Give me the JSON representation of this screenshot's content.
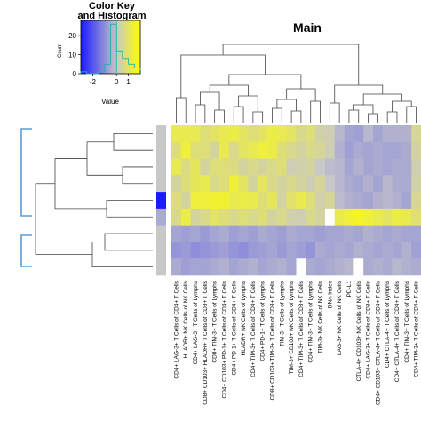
{
  "chart_data": [
    {
      "type": "heatmap",
      "title": "Main",
      "rows": 9,
      "columns": [
        "CD4+ LAG-3+ T Cells of CD4+ T Cells",
        "HLADR+ NK Cells of NK Cells",
        "CD4+ LAG-3+ T Cells of Lymphs",
        "CD8+ CD103+ HLADR+ T Cells of CD8+ T Cells",
        "CD8+ TIM-3+ T Cells of Lymphs",
        "CD4+ CD103+ PD-1+ T Cells of CD4+ T Cells",
        "CD4+ PD-1+ T Cells of CD4+ T Cells",
        "HLADR+ NK Cells of Lymphs",
        "CD4+ TIM-3+ T Cells of CD4+ T Cells",
        "CD4+ PD-1+ T Cells of Lymphs",
        "CD8+ CD103+ TIM-3+ T Cells of CD8+ T Cells",
        "TIM-3+ T Cells of Lymphs",
        "TIM-3+ CD103+ NK Cells of Lymphs",
        "CD4+ TIM-3+ T Cells of CD8+ T Cells",
        "CD4+ TIM-3+ T Cells of Lymphs",
        "TIM-3+ NK Cells of NK Cells",
        "DNA Index",
        "LAG-3+ NK Cells of NK Cells",
        "PD-L1",
        "CTLA-4+ CD103+ NK Cells of NK Cells",
        "CD4+ LAG-3+ T Cells of CD8+ T Cells",
        "CD4+ CD103+ CTLA-4+ T Cells of CD4+ T Cells",
        "CD4+ CTLA-4+ T Cells of Lymphs",
        "CD4+ CTLA-4+ T Cells of CD4+ T Cells",
        "CD4+ TIM-3+ T Cells of Lymphs",
        "CD4+ TIM-3+ T Cells of CD4+ T Cells"
      ],
      "values": [
        [
          0.0,
          1.2,
          1.2,
          1.2,
          0.8,
          1.0,
          1.2,
          1.3,
          1.0,
          0.8,
          1.0,
          1.3,
          1.2,
          1.0,
          0.6,
          0.8,
          0.3,
          0.2,
          -0.3,
          -0.6,
          -0.7,
          -0.3,
          -0.6,
          -0.4,
          -0.4,
          -0.4
        ],
        [
          0.0,
          0.8,
          1.4,
          0.8,
          0.8,
          0.4,
          1.2,
          0.6,
          1.0,
          1.2,
          1.4,
          1.3,
          0.8,
          0.6,
          0.4,
          0.6,
          0.5,
          0.2,
          -0.4,
          -0.7,
          -0.5,
          -0.6,
          -0.5,
          -0.6,
          -0.6,
          -0.5
        ],
        [
          0.0,
          1.2,
          0.7,
          1.1,
          0.4,
          0.8,
          0.8,
          0.7,
          0.4,
          0.6,
          0.4,
          0.6,
          0.8,
          0.2,
          0.3,
          0.4,
          0.0,
          -0.2,
          -0.3,
          -0.6,
          -0.4,
          -0.6,
          -0.5,
          -0.6,
          -0.5,
          -0.5
        ],
        [
          0.0,
          0.4,
          0.8,
          1.1,
          1.2,
          0.6,
          0.8,
          1.4,
          1.0,
          0.4,
          1.1,
          0.6,
          0.4,
          0.6,
          0.4,
          0.2,
          0.5,
          0.0,
          -0.3,
          -0.5,
          -0.6,
          -0.4,
          -0.6,
          -0.3,
          -0.5,
          -0.5
        ],
        [
          -3.0,
          0.8,
          0.4,
          1.4,
          1.4,
          1.5,
          1.5,
          1.2,
          1.3,
          1.2,
          0.8,
          1.1,
          0.4,
          0.9,
          1.2,
          0.8,
          0.3,
          0.5,
          -0.2,
          -0.4,
          -0.5,
          -0.6,
          -0.4,
          -0.3,
          -0.4,
          -0.6
        ],
        [
          -0.5,
          0.6,
          1.3,
          0.4,
          0.6,
          1.0,
          0.8,
          0.6,
          0.8,
          0.6,
          0.8,
          0.4,
          0.6,
          0.3,
          0.2,
          0.6,
          0.4,
          null,
          1.2,
          1.4,
          1.6,
          1.4,
          1.2,
          1.0,
          1.3,
          1.2
        ],
        [
          0.0,
          -0.6,
          -0.7,
          -0.6,
          -0.8,
          -0.6,
          -0.5,
          -0.7,
          -0.6,
          -0.7,
          -0.5,
          -0.6,
          -0.7,
          -0.5,
          -0.6,
          -0.6,
          -0.7,
          -0.6,
          -0.6,
          -0.5,
          -0.6,
          -0.4,
          -0.5,
          -0.6,
          -0.5,
          -0.6
        ],
        [
          0.0,
          -0.9,
          -0.8,
          -1.0,
          -0.9,
          -0.8,
          -0.7,
          -0.9,
          -1.0,
          -0.8,
          -0.7,
          -0.6,
          -0.8,
          -0.6,
          -0.7,
          -0.9,
          -0.5,
          -0.6,
          -0.5,
          -0.6,
          -0.4,
          -0.5,
          -0.6,
          -0.5,
          -0.6,
          -0.4
        ],
        [
          0.0,
          -0.5,
          -0.7,
          -0.6,
          -0.6,
          -0.5,
          -0.4,
          -0.6,
          -0.5,
          -0.4,
          -0.6,
          -0.5,
          -0.4,
          -0.6,
          null,
          -0.5,
          -0.6,
          -0.5,
          -0.4,
          -0.3,
          null,
          -0.5,
          -0.4,
          -0.5,
          -0.3,
          -0.4
        ]
      ],
      "color_scale": {
        "low": "#1a1aff",
        "mid": "#c8c8c8",
        "high": "#ffff00",
        "missing": "#ffffff",
        "range": [
          -3,
          2
        ]
      }
    },
    {
      "type": "histogram",
      "title": "Color Key\nand Histogram",
      "xlabel": "Value",
      "ylabel": "Count",
      "x_ticks": [
        -2,
        0,
        1
      ],
      "y_ticks": [
        0,
        10,
        20
      ],
      "bins": [
        -3,
        -2.5,
        -2,
        -1.5,
        -1,
        -0.5,
        0,
        0.5,
        1,
        1.5,
        2
      ],
      "counts": [
        1,
        0,
        0,
        1,
        5,
        26,
        12,
        8,
        5,
        3,
        2
      ],
      "density_line_color": "#20b2aa"
    }
  ],
  "colors": {
    "dendro_bracket": "#5b9bd5",
    "dendro_line": "#444444"
  }
}
